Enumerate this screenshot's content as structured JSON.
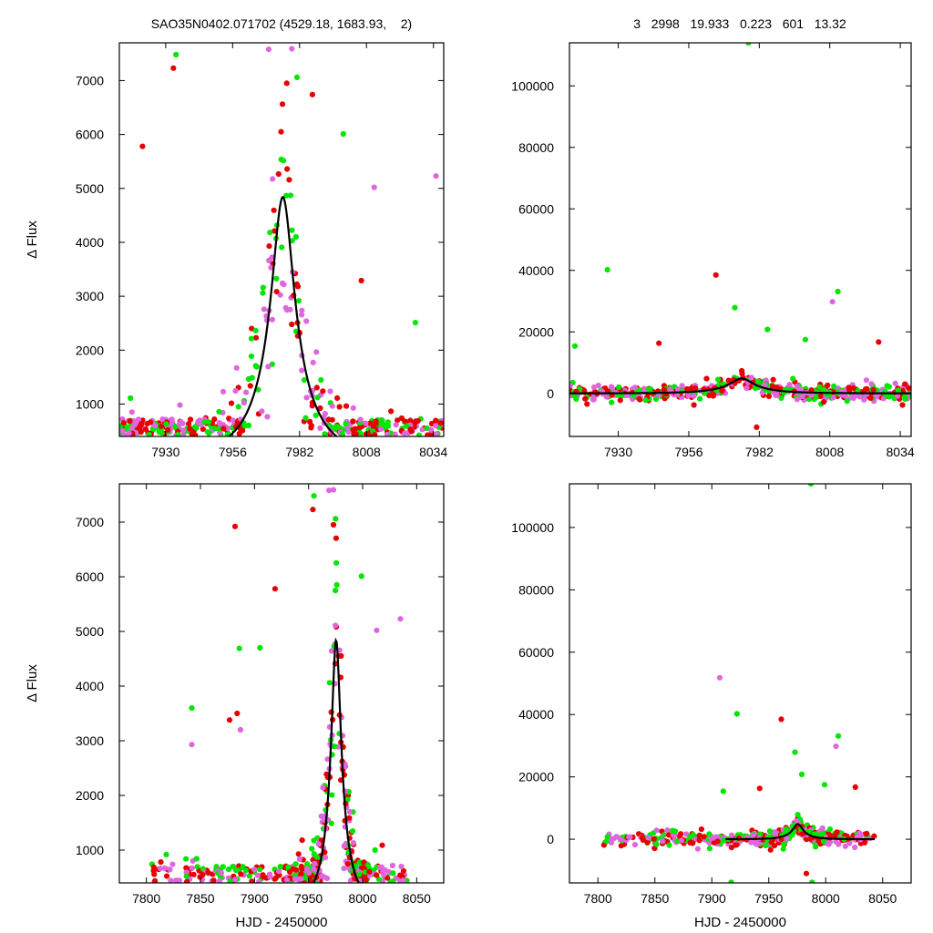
{
  "header": {
    "title": "SAO35N0402.071702 (4529.18, 1683.93,    2)",
    "stats": "3   2998   19.933   0.223   601   13.32"
  },
  "colors": {
    "red": "#e60000",
    "magenta": "#e066e0",
    "green": "#00e600",
    "fit": "#000000"
  },
  "chart_data": [
    {
      "type": "scatter",
      "panel": "top-left",
      "title": "SAO35N0402.071702 (4529.18, 1683.93,    2)",
      "xlabel": "",
      "ylabel": "Δ Flux",
      "xlim": [
        7912,
        8038
      ],
      "ylim": [
        400,
        7700
      ],
      "xticks": [
        7930,
        7956,
        7982,
        8008,
        8034
      ],
      "yticks": [
        1000,
        2000,
        3000,
        4000,
        5000,
        6000,
        7000
      ],
      "fit": {
        "t0": 7975.5,
        "umin": 0.223,
        "tE": 19.933,
        "baseline": 0,
        "scale": 1357
      },
      "highlight_points": [
        {
          "x": 7934,
          "y": 7480,
          "c": "green"
        },
        {
          "x": 7933,
          "y": 7230,
          "c": "red"
        },
        {
          "x": 7970,
          "y": 7580,
          "c": "magenta"
        },
        {
          "x": 7979,
          "y": 7590,
          "c": "magenta"
        },
        {
          "x": 7977,
          "y": 6950,
          "c": "red"
        },
        {
          "x": 7981,
          "y": 7060,
          "c": "green"
        },
        {
          "x": 7987,
          "y": 6740,
          "c": "red"
        },
        {
          "x": 7921,
          "y": 5780,
          "c": "red"
        },
        {
          "x": 7999,
          "y": 6010,
          "c": "green"
        },
        {
          "x": 8035,
          "y": 5230,
          "c": "magenta"
        },
        {
          "x": 8011,
          "y": 5020,
          "c": "magenta"
        },
        {
          "x": 8006,
          "y": 3290,
          "c": "red"
        },
        {
          "x": 8027,
          "y": 2510,
          "c": "green"
        },
        {
          "x": 7915,
          "y": 560,
          "c": "green"
        }
      ]
    },
    {
      "type": "scatter",
      "panel": "top-right",
      "title": "3   2998   19.933   0.223   601   13.32",
      "xlabel": "",
      "ylabel": "",
      "xlim": [
        7912,
        8038
      ],
      "ylim": [
        -14000,
        114000
      ],
      "xticks": [
        7930,
        7956,
        7982,
        8008,
        8034
      ],
      "yticks": [
        0,
        20000,
        40000,
        60000,
        80000,
        100000
      ],
      "fit": {
        "t0": 7975.5,
        "umin": 0.223,
        "tE": 19.933,
        "baseline": 0,
        "scale": 1357
      },
      "highlight_points": [
        {
          "x": 7978,
          "y": 114000,
          "c": "green"
        },
        {
          "x": 7926,
          "y": 40200,
          "c": "green"
        },
        {
          "x": 7966,
          "y": 38500,
          "c": "red"
        },
        {
          "x": 8011,
          "y": 33100,
          "c": "green"
        },
        {
          "x": 8009,
          "y": 29800,
          "c": "magenta"
        },
        {
          "x": 7973,
          "y": 27900,
          "c": "green"
        },
        {
          "x": 7985,
          "y": 20800,
          "c": "green"
        },
        {
          "x": 8026,
          "y": 16700,
          "c": "red"
        },
        {
          "x": 7945,
          "y": 16300,
          "c": "red"
        },
        {
          "x": 7914,
          "y": 15400,
          "c": "green"
        },
        {
          "x": 7999,
          "y": 17500,
          "c": "green"
        },
        {
          "x": 7981,
          "y": -11000,
          "c": "red"
        }
      ]
    },
    {
      "type": "scatter",
      "panel": "bottom-left",
      "title": "",
      "xlabel": "HJD - 2450000",
      "ylabel": "Δ Flux",
      "xlim": [
        7775,
        8075
      ],
      "ylim": [
        400,
        7700
      ],
      "xticks": [
        7800,
        7850,
        7900,
        7950,
        8000,
        8050
      ],
      "yticks": [
        1000,
        2000,
        3000,
        4000,
        5000,
        6000,
        7000
      ],
      "fit": {
        "t0": 7975.5,
        "umin": 0.223,
        "tE": 19.933,
        "baseline": 0,
        "scale": 1357
      },
      "highlight_points": [
        {
          "x": 7955,
          "y": 7480,
          "c": "green"
        },
        {
          "x": 7954,
          "y": 7230,
          "c": "red"
        },
        {
          "x": 7969,
          "y": 7580,
          "c": "magenta"
        },
        {
          "x": 7973,
          "y": 7590,
          "c": "magenta"
        },
        {
          "x": 7973,
          "y": 6950,
          "c": "red"
        },
        {
          "x": 7975,
          "y": 7060,
          "c": "green"
        },
        {
          "x": 7882,
          "y": 6920,
          "c": "red"
        },
        {
          "x": 7919,
          "y": 5780,
          "c": "red"
        },
        {
          "x": 7999,
          "y": 6010,
          "c": "green"
        },
        {
          "x": 8035,
          "y": 5230,
          "c": "magenta"
        },
        {
          "x": 8013,
          "y": 5020,
          "c": "magenta"
        },
        {
          "x": 7886,
          "y": 4690,
          "c": "green"
        },
        {
          "x": 7905,
          "y": 4700,
          "c": "green"
        },
        {
          "x": 7842,
          "y": 3600,
          "c": "green"
        },
        {
          "x": 7884,
          "y": 3500,
          "c": "red"
        },
        {
          "x": 7877,
          "y": 3380,
          "c": "red"
        },
        {
          "x": 7887,
          "y": 3200,
          "c": "magenta"
        },
        {
          "x": 7842,
          "y": 2930,
          "c": "magenta"
        }
      ]
    },
    {
      "type": "scatter",
      "panel": "bottom-right",
      "title": "",
      "xlabel": "HJD - 2450000",
      "ylabel": "",
      "xlim": [
        7775,
        8075
      ],
      "ylim": [
        -14000,
        114000
      ],
      "xticks": [
        7800,
        7850,
        7900,
        7950,
        8000,
        8050
      ],
      "yticks": [
        0,
        20000,
        40000,
        60000,
        80000,
        100000
      ],
      "fit": {
        "t0": 7975.5,
        "umin": 0.223,
        "tE": 19.933,
        "baseline": 0,
        "scale": 1357,
        "xrange": [
          7912,
          8043
        ]
      },
      "highlight_points": [
        {
          "x": 7987,
          "y": 114000,
          "c": "green"
        },
        {
          "x": 7907,
          "y": 51800,
          "c": "magenta"
        },
        {
          "x": 7922,
          "y": 40200,
          "c": "green"
        },
        {
          "x": 7961,
          "y": 38500,
          "c": "red"
        },
        {
          "x": 8011,
          "y": 33100,
          "c": "green"
        },
        {
          "x": 8009,
          "y": 29800,
          "c": "magenta"
        },
        {
          "x": 7973,
          "y": 27900,
          "c": "green"
        },
        {
          "x": 7979,
          "y": 20800,
          "c": "green"
        },
        {
          "x": 8026,
          "y": 16700,
          "c": "red"
        },
        {
          "x": 7942,
          "y": 16300,
          "c": "red"
        },
        {
          "x": 7910,
          "y": 15400,
          "c": "green"
        },
        {
          "x": 7999,
          "y": 17500,
          "c": "green"
        },
        {
          "x": 7983,
          "y": -11000,
          "c": "red"
        },
        {
          "x": 7988,
          "y": -13800,
          "c": "green"
        },
        {
          "x": 7917,
          "y": -13800,
          "c": "green"
        }
      ]
    }
  ]
}
